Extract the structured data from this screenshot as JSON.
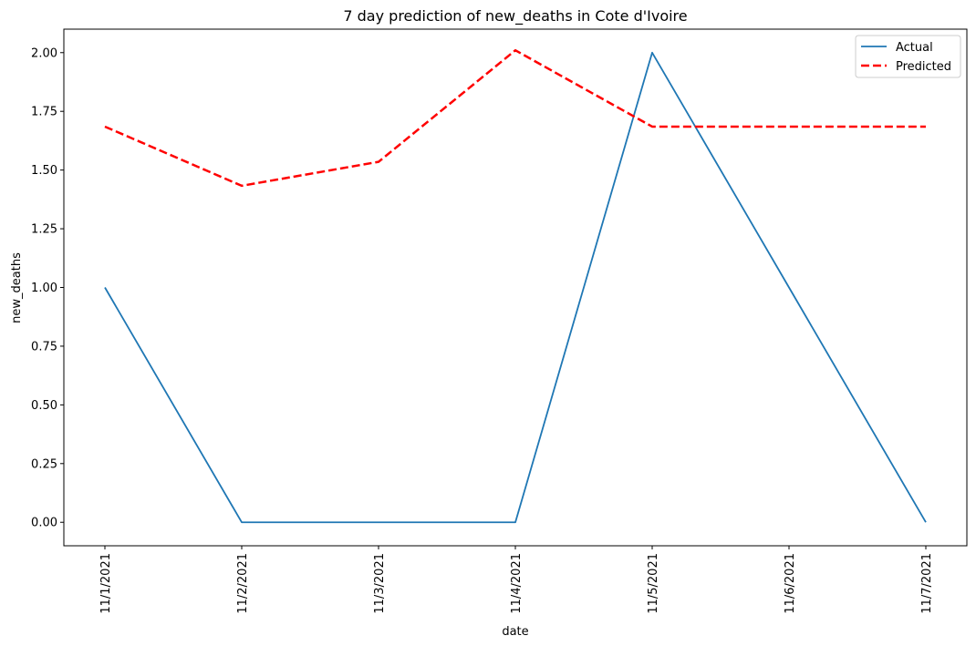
{
  "chart_data": {
    "type": "line",
    "title": "7 day prediction of new_deaths in Cote d'Ivoire",
    "xlabel": "date",
    "ylabel": "new_deaths",
    "categories": [
      "11/1/2021",
      "11/2/2021",
      "11/3/2021",
      "11/4/2021",
      "11/5/2021",
      "11/6/2021",
      "11/7/2021"
    ],
    "series": [
      {
        "name": "Actual",
        "values": [
          1,
          0,
          0,
          0,
          2,
          1,
          0
        ],
        "color": "#1f77b4",
        "style": "solid"
      },
      {
        "name": "Predicted",
        "values": [
          1.685,
          1.433,
          1.535,
          2.01,
          1.685,
          1.685,
          1.685
        ],
        "color": "#ff0000",
        "style": "dashed"
      }
    ],
    "ylim": [
      -0.1,
      2.1
    ],
    "yticks": [
      "0.00",
      "0.25",
      "0.50",
      "0.75",
      "1.00",
      "1.25",
      "1.50",
      "1.75",
      "2.00"
    ],
    "grid": false,
    "legend": "top-right"
  }
}
